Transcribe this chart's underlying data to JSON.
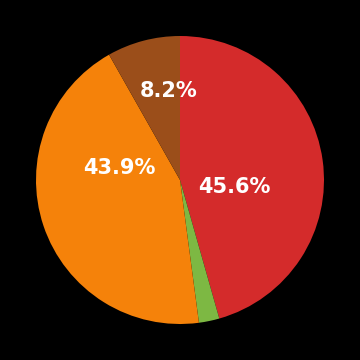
{
  "wedge_values": [
    45.6,
    2.3,
    43.9,
    8.2
  ],
  "wedge_colors": [
    "#d42b2b",
    "#7db843",
    "#f5820a",
    "#9b4e1a"
  ],
  "background_color": "#000000",
  "text_color": "#ffffff",
  "startangle": 90,
  "counterclock": false,
  "fontsize": 15,
  "label_red": [
    0.38,
    -0.05
  ],
  "label_orange": [
    -0.42,
    0.08
  ],
  "label_brown": [
    -0.08,
    0.62
  ],
  "figsize": [
    3.6,
    3.6
  ],
  "dpi": 100
}
